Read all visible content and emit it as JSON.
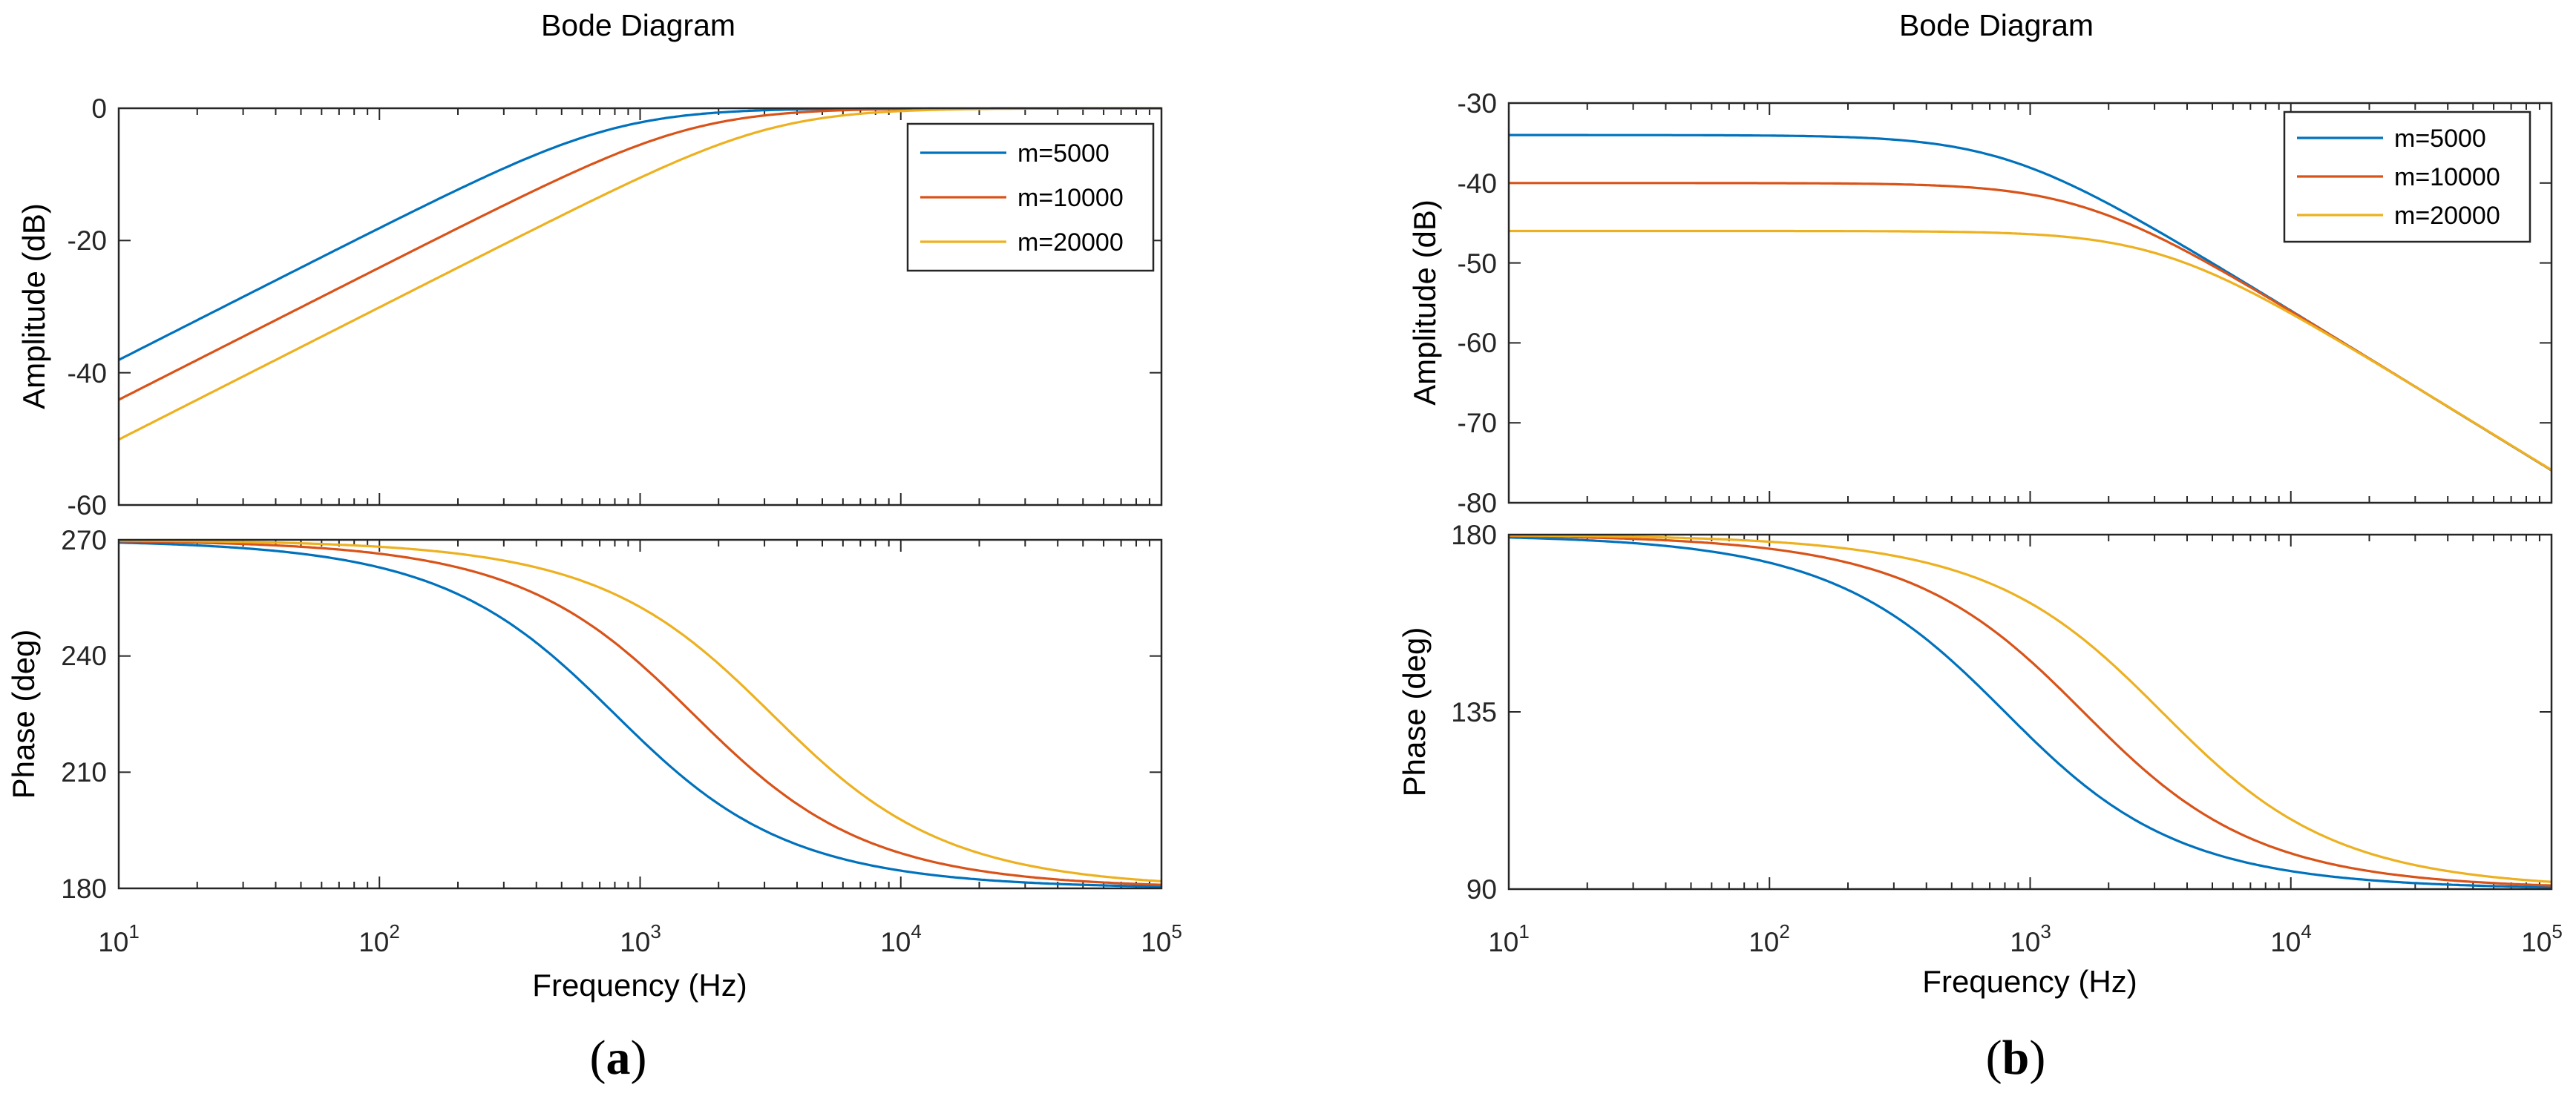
{
  "figure": {
    "panel_labels": [
      "a",
      "b"
    ]
  },
  "colors": {
    "m=5000": "#0072BD",
    "m=10000": "#D95319",
    "m=20000": "#EDB120"
  },
  "chart_data": [
    {
      "panel": "a",
      "type": "line",
      "title": "Bode Diagram",
      "xlabel": "Frequency  (Hz)",
      "xscale": "log",
      "xlim": [
        10,
        100000
      ],
      "x_ticks": [
        {
          "base": "10",
          "exp": "1"
        },
        {
          "base": "10",
          "exp": "2"
        },
        {
          "base": "10",
          "exp": "3"
        },
        {
          "base": "10",
          "exp": "4"
        },
        {
          "base": "10",
          "exp": "5"
        }
      ],
      "legend": {
        "position": "top-right",
        "entries": [
          "m=5000",
          "m=10000",
          "m=20000"
        ]
      },
      "magnitude": {
        "ylabel": "Amplitude (dB)",
        "ylim": [
          -60,
          0
        ],
        "yticks": [
          "0",
          "-20",
          "-40",
          "-60"
        ],
        "model": "highpass",
        "series": [
          {
            "name": "m=5000",
            "corner_hz": 800,
            "gain_db": 0,
            "values_at_decades": [
              -38.1,
              -18.4,
              -2.8,
              -0.03,
              0.0
            ]
          },
          {
            "name": "m=10000",
            "corner_hz": 1600,
            "gain_db": 0,
            "values_at_decades": [
              -44.1,
              -24.2,
              -6.0,
              -0.1,
              0.0
            ]
          },
          {
            "name": "m=20000",
            "corner_hz": 3200,
            "gain_db": 0,
            "values_at_decades": [
              -50.1,
              -30.1,
              -10.6,
              -0.4,
              0.0
            ]
          }
        ]
      },
      "phase": {
        "ylabel": "Phase (deg)",
        "ylim": [
          180,
          270
        ],
        "yticks": [
          "270",
          "240",
          "210",
          "180"
        ],
        "offset_deg": 180,
        "series": [
          {
            "name": "m=5000",
            "corner_hz": 800,
            "values_at_decades": [
              269.3,
              262.9,
              218.7,
              184.6,
              180.5
            ]
          },
          {
            "name": "m=10000",
            "corner_hz": 1600,
            "values_at_decades": [
              269.6,
              266.4,
              238.0,
              189.1,
              180.9
            ]
          },
          {
            "name": "m=20000",
            "corner_hz": 3200,
            "values_at_decades": [
              269.8,
              268.2,
              252.7,
              197.4,
              181.8
            ]
          }
        ]
      }
    },
    {
      "panel": "b",
      "type": "line",
      "title": "Bode Diagram",
      "xlabel": "Frequency  (Hz)",
      "xscale": "log",
      "xlim": [
        10,
        100000
      ],
      "x_ticks": [
        {
          "base": "10",
          "exp": "1"
        },
        {
          "base": "10",
          "exp": "2"
        },
        {
          "base": "10",
          "exp": "3"
        },
        {
          "base": "10",
          "exp": "4"
        },
        {
          "base": "10",
          "exp": "5"
        }
      ],
      "legend": {
        "position": "top-right",
        "entries": [
          "m=5000",
          "m=10000",
          "m=20000"
        ]
      },
      "magnitude": {
        "ylabel": "Amplitude (dB)",
        "ylim": [
          -80,
          -30
        ],
        "yticks": [
          "-30",
          "-40",
          "-50",
          "-60",
          "-70",
          "-80"
        ],
        "model": "lowpass",
        "series": [
          {
            "name": "m=5000",
            "corner_hz": 800,
            "gain_db": -34,
            "values_at_decades": [
              -34.0,
              -34.1,
              -37.4,
              -55.9,
              -75.9
            ]
          },
          {
            "name": "m=10000",
            "corner_hz": 1600,
            "gain_db": -40,
            "values_at_decades": [
              -40.0,
              -40.0,
              -41.4,
              -56.0,
              -75.9
            ]
          },
          {
            "name": "m=20000",
            "corner_hz": 3200,
            "gain_db": -46,
            "values_at_decades": [
              -46.0,
              -46.0,
              -46.5,
              -56.4,
              -75.9
            ]
          }
        ]
      },
      "phase": {
        "ylabel": "Phase (deg)",
        "ylim": [
          90,
          180
        ],
        "yticks": [
          "180",
          "135",
          "90"
        ],
        "offset_deg": 90,
        "series": [
          {
            "name": "m=5000",
            "corner_hz": 800,
            "values_at_decades": [
              179.3,
              172.9,
              128.7,
              94.6,
              90.5
            ]
          },
          {
            "name": "m=10000",
            "corner_hz": 1600,
            "values_at_decades": [
              179.6,
              176.4,
              148.0,
              99.1,
              90.9
            ]
          },
          {
            "name": "m=20000",
            "corner_hz": 3200,
            "values_at_decades": [
              179.8,
              178.2,
              162.7,
              107.4,
              91.8
            ]
          }
        ]
      }
    }
  ]
}
